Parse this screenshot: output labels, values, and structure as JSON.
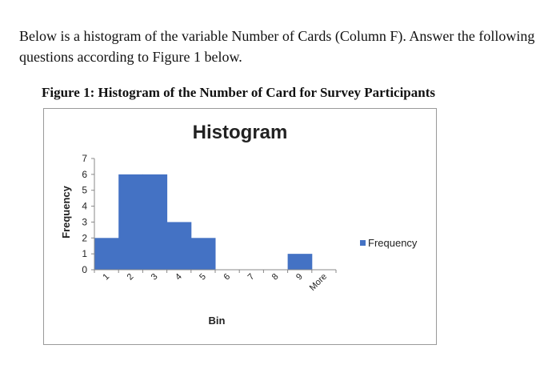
{
  "intro_text": "Below is a histogram of the variable Number of Cards (Column F). Answer the following questions according to Figure 1 below.",
  "figure_caption": "Figure 1: Histogram of the Number of Card for Survey Participants",
  "chart_data": {
    "type": "bar",
    "title": "Histogram",
    "xlabel": "Bin",
    "ylabel": "Frequency",
    "categories": [
      "1",
      "2",
      "3",
      "4",
      "5",
      "6",
      "7",
      "8",
      "9",
      "More"
    ],
    "series": [
      {
        "name": "Frequency",
        "values": [
          2,
          6,
          6,
          3,
          2,
          0,
          0,
          0,
          1,
          0
        ]
      }
    ],
    "ylim": [
      0,
      7
    ],
    "yticks": [
      "0",
      "1",
      "2",
      "3",
      "4",
      "5",
      "6",
      "7"
    ],
    "legend_position": "right",
    "grid": false,
    "bar_color": "#4472C4"
  }
}
